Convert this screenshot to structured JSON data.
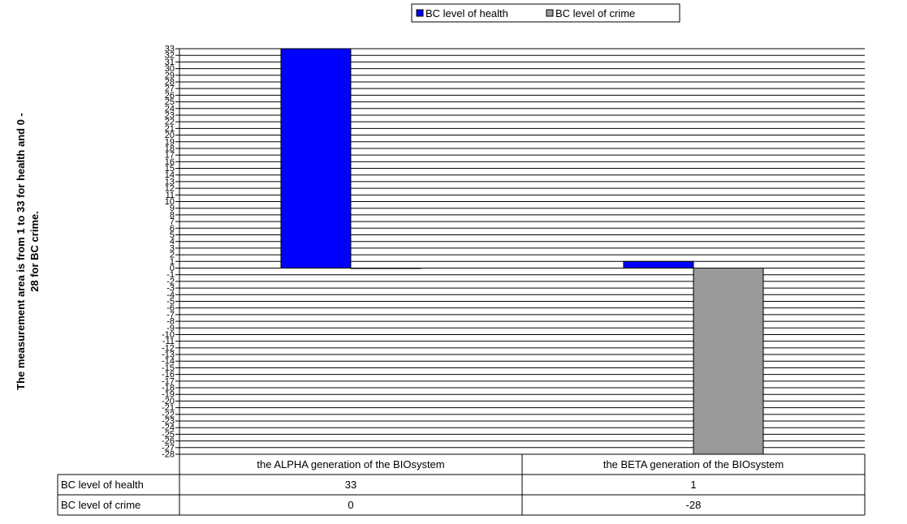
{
  "chart_data": {
    "type": "bar",
    "categories": [
      "the ALPHA generation of the BIOsystem",
      "the BETA generation of the BIOsystem"
    ],
    "series": [
      {
        "name": "BC level of health",
        "values": [
          33,
          1
        ],
        "color": "#0000ff"
      },
      {
        "name": "BC level of crime",
        "values": [
          0,
          -28
        ],
        "color": "#999999"
      }
    ],
    "ylabel": "The measurement area is from 1 to 33 for health and 0 - 28 for BC crime.",
    "ylabel_lines": [
      "The measurement area is from 1 to 33 for health and 0  -",
      "28  for  BC crime."
    ],
    "ylim": [
      -28,
      33
    ],
    "ytick_step": 1,
    "grid": true,
    "legend_position": "top-center",
    "data_table": {
      "rows": [
        {
          "label": "BC level of health",
          "cells": [
            "33",
            "1"
          ]
        },
        {
          "label": "BC level of crime",
          "cells": [
            "0",
            "-28"
          ]
        }
      ]
    }
  }
}
